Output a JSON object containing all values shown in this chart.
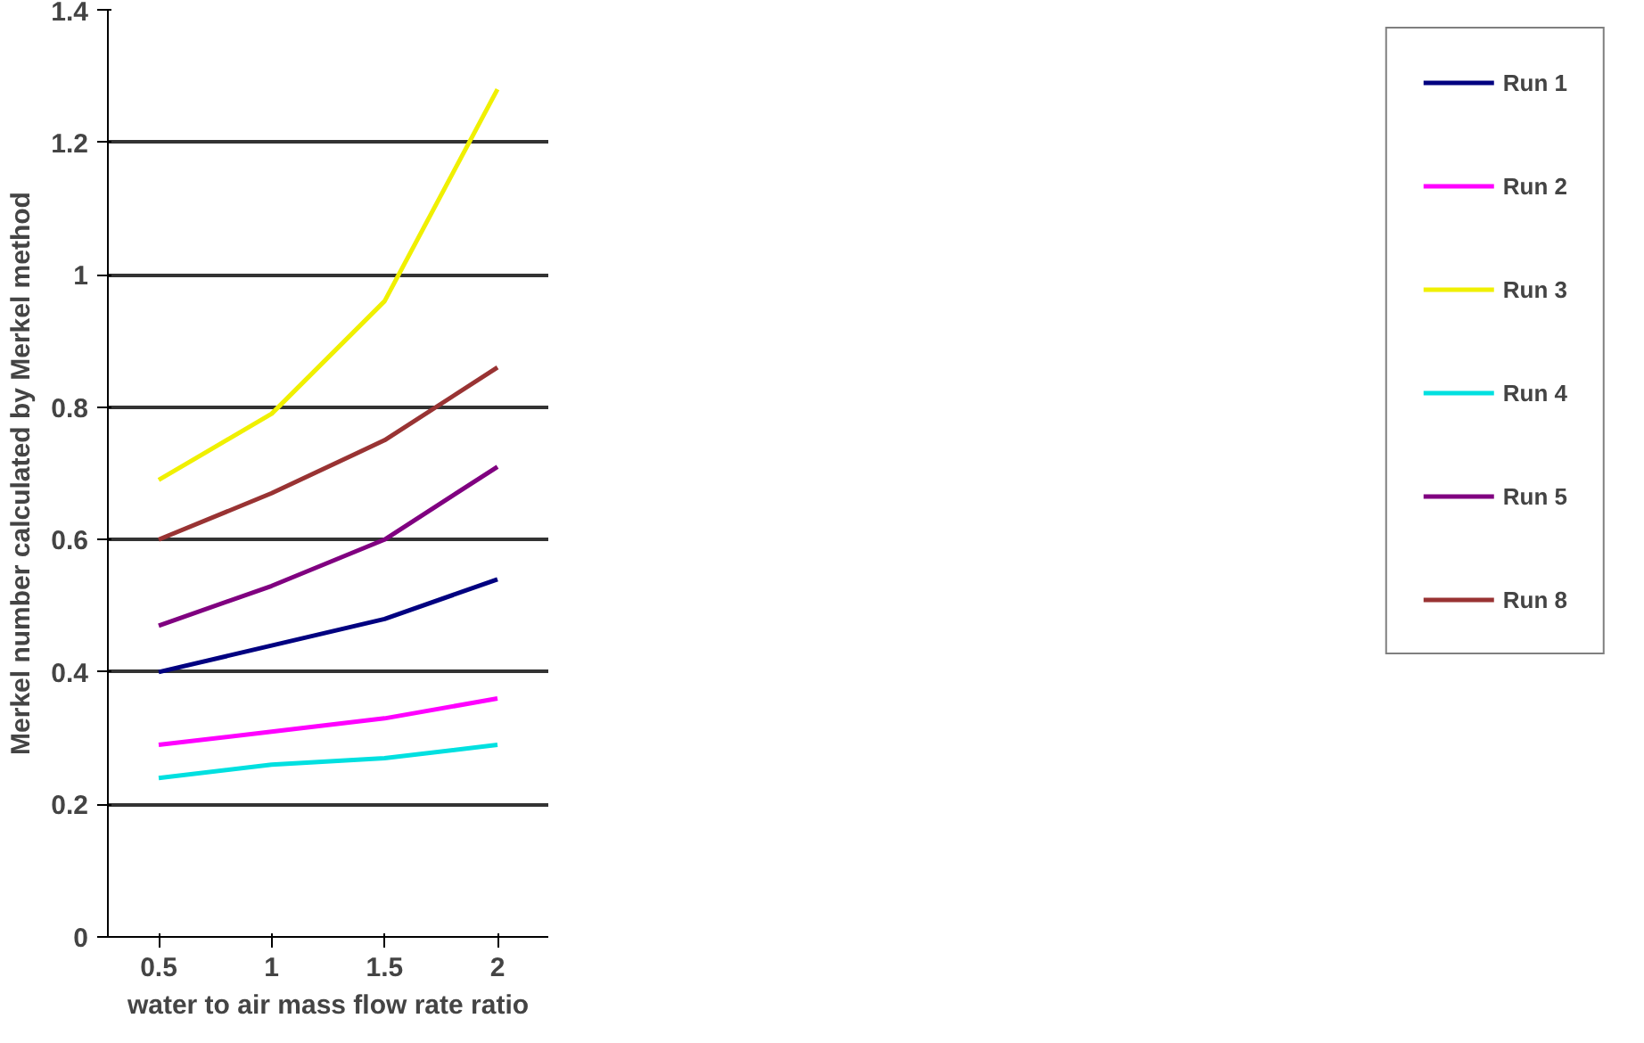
{
  "chart_data": {
    "type": "line",
    "xlabel": "water to air mass flow rate ratio",
    "ylabel": "Merkel number calculated by Merkel method",
    "categories": [
      "0.5",
      "1",
      "1.5",
      "2"
    ],
    "series": [
      {
        "name": "Run 1",
        "color": "#000080",
        "values": [
          0.4,
          0.44,
          0.48,
          0.54
        ]
      },
      {
        "name": "Run 2",
        "color": "#ff00ff",
        "values": [
          0.29,
          0.31,
          0.33,
          0.36
        ]
      },
      {
        "name": "Run 3",
        "color": "#f0f000",
        "values": [
          0.69,
          0.79,
          0.96,
          1.28
        ]
      },
      {
        "name": "Run 4",
        "color": "#00e0e0",
        "values": [
          0.24,
          0.26,
          0.27,
          0.29
        ]
      },
      {
        "name": "Run 5",
        "color": "#800080",
        "values": [
          0.47,
          0.53,
          0.6,
          0.71
        ]
      },
      {
        "name": "Run 8",
        "color": "#993333",
        "values": [
          0.6,
          0.67,
          0.75,
          0.86
        ]
      }
    ],
    "ylim": [
      0,
      1.4
    ],
    "yticks": [
      0,
      0.2,
      0.4,
      0.6,
      0.8,
      1,
      1.2,
      1.4
    ],
    "grid": "y",
    "legend": "right",
    "marker": "none",
    "line_style": "solid"
  }
}
